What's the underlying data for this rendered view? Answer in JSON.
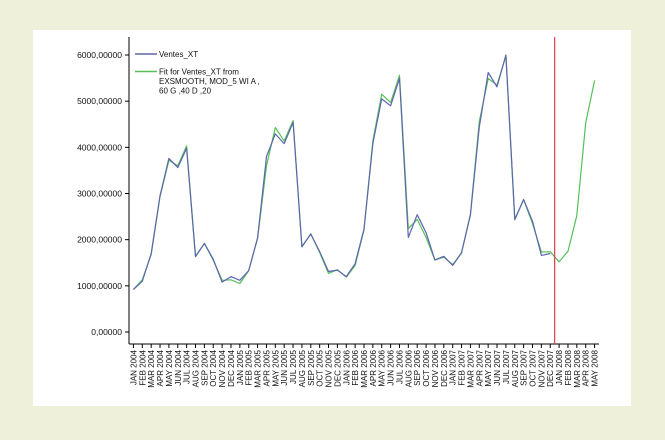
{
  "colors": {
    "page_background": "#eef0d9",
    "plot_background": "#ffffff",
    "observed_line": "#5c66ad",
    "fit_line": "#55c05a",
    "marker_line": "#e8384d",
    "axis": "#000000"
  },
  "chart_data": {
    "type": "line",
    "title": "",
    "xlabel": "",
    "ylabel": "",
    "ylim": [
      0,
      6000
    ],
    "y_ticks": [
      0,
      1000,
      2000,
      3000,
      4000,
      5000,
      6000
    ],
    "y_tick_labels": [
      "0,00000",
      "1000,00000",
      "2000,00000",
      "3000,00000",
      "4000,00000",
      "5000,00000",
      "6000,00000"
    ],
    "grid": false,
    "legend_position": "top-left",
    "legend": [
      {
        "series": "observed",
        "lines": [
          "Ventes_XT"
        ]
      },
      {
        "series": "fit",
        "lines": [
          "Fit for Ventes_XT from",
          "EXSMOOTH, MOD_5 WI A ,",
          "60 G ,40 D ,20"
        ]
      }
    ],
    "vertical_marker_category": "DEC 2007",
    "categories": [
      "JAN 2004",
      "FEB 2004",
      "MAR 2004",
      "APR 2004",
      "MAY 2004",
      "JUN 2004",
      "JUL 2004",
      "AUG 2004",
      "SEP 2004",
      "OCT 2004",
      "NOV 2004",
      "DEC 2004",
      "JAN 2005",
      "FEB 2005",
      "MAR 2005",
      "APR 2005",
      "MAY 2005",
      "JUN 2005",
      "JUL 2005",
      "AUG 2005",
      "SEP 2005",
      "OCT 2005",
      "NOV 2005",
      "DEC 2005",
      "JAN 2006",
      "FEB 2006",
      "MAR 2006",
      "APR 2006",
      "MAY 2006",
      "JUN 2006",
      "JUL 2006",
      "AUG 2006",
      "SEP 2006",
      "OCT 2006",
      "NOV 2006",
      "DEC 2006",
      "JAN 2007",
      "FEB 2007",
      "MAR 2007",
      "APR 2007",
      "MAY 2007",
      "JUN 2007",
      "JUL 2007",
      "AUG 2007",
      "SEP 2007",
      "OCT 2007",
      "NOV 2007",
      "DEC 2007",
      "JAN 2008",
      "FEB 2008",
      "MAR 2008",
      "APR 2008",
      "MAY 2008"
    ],
    "series": [
      {
        "name": "Ventes_XT",
        "key": "observed",
        "values": [
          920,
          1100,
          1700,
          2950,
          3760,
          3560,
          3980,
          1630,
          1920,
          1580,
          1080,
          1200,
          1120,
          1330,
          2040,
          3800,
          4290,
          4080,
          4540,
          1850,
          2120,
          1740,
          1310,
          1340,
          1200,
          1480,
          2230,
          4090,
          5050,
          4900,
          5490,
          2050,
          2540,
          2150,
          1560,
          1640,
          1440,
          1720,
          2530,
          4440,
          5620,
          5310,
          6000,
          2440,
          2870,
          2400,
          1660,
          1700,
          null,
          null,
          null,
          null,
          null
        ]
      },
      {
        "name": "Fit for Ventes_XT from EXSMOOTH, MOD_5 WI A , 60 G ,40 D ,20",
        "key": "fit",
        "values": [
          920,
          1130,
          1680,
          2930,
          3720,
          3600,
          4030,
          1640,
          1920,
          1560,
          1120,
          1130,
          1050,
          1330,
          2030,
          3600,
          4430,
          4140,
          4580,
          1840,
          2130,
          1720,
          1270,
          1350,
          1190,
          1440,
          2210,
          4150,
          5150,
          4970,
          5560,
          2240,
          2440,
          2050,
          1560,
          1620,
          1460,
          1710,
          2550,
          4560,
          5490,
          5350,
          5980,
          2430,
          2870,
          2350,
          1730,
          1740,
          1520,
          1750,
          2520,
          4530,
          5450
        ]
      }
    ]
  }
}
